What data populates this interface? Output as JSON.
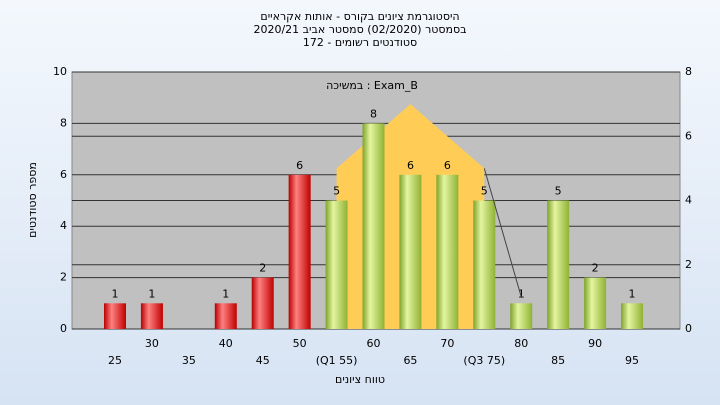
{
  "chart_data": {
    "type": "bar",
    "title": "היסטוגרמת ציונים בקורס - אותות אקראיים",
    "subtitle": "בסמסטר (02/2020) סמסטר אביב 2020/21",
    "subtitle2": "סטודנטים רשומים - 172",
    "annotation": "Exam_B : במשיכה",
    "ylabel": "מספר סטודנטים",
    "xlabel": "טווח ציונים",
    "categories": [
      "25",
      "30",
      "35",
      "40",
      "45",
      "50",
      "(Q1 55)",
      "60",
      "65",
      "70",
      "(Q3 75)",
      "80",
      "85",
      "90",
      "95"
    ],
    "values": [
      1,
      1,
      0,
      1,
      2,
      6,
      5,
      8,
      6,
      6,
      5,
      1,
      5,
      2,
      1
    ],
    "colors": [
      "red",
      "red",
      "red",
      "red",
      "red",
      "red",
      "green",
      "green",
      "green",
      "green",
      "green",
      "green",
      "green",
      "green",
      "green"
    ],
    "ylim": [
      0,
      10
    ],
    "yticks": [
      0,
      2,
      4,
      6,
      8,
      10
    ],
    "y2lim": [
      0,
      8
    ],
    "y2ticks": [
      0,
      2,
      4,
      6,
      8
    ],
    "overlay": {
      "axis": "y2",
      "x": [
        55,
        65,
        75
      ],
      "values": [
        5,
        7,
        5
      ],
      "color": "#ffcc55"
    },
    "tail": {
      "axis": "y2",
      "x": [
        75,
        80
      ],
      "values": [
        5,
        1
      ],
      "color": "#444444"
    },
    "grid": true
  }
}
